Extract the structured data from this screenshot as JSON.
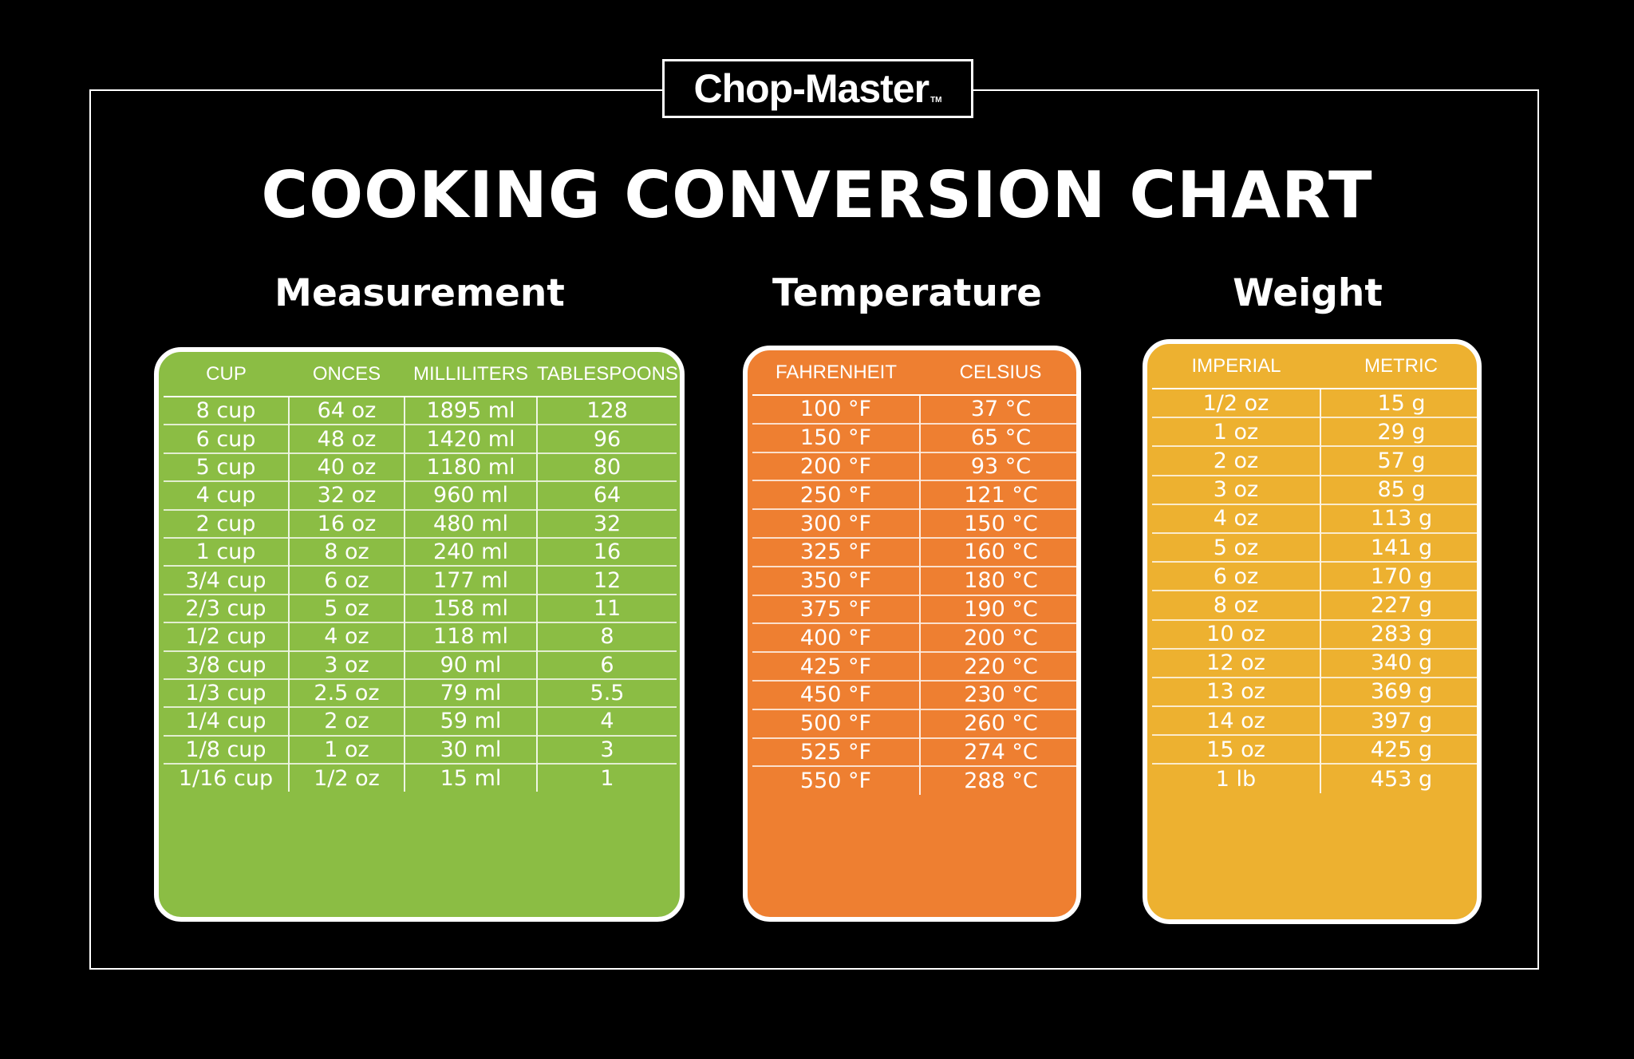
{
  "brand": {
    "name": "Chop-Master",
    "tm": "TM"
  },
  "title": "COOKING CONVERSION CHART",
  "colors": {
    "background": "#000000",
    "measurement": "#8bbd44",
    "temperature": "#ee7f31",
    "weight": "#edb130",
    "text": "#ffffff"
  },
  "measurement": {
    "heading": "Measurement",
    "columns": [
      "CUP",
      "ONCES",
      "MILLILITERS",
      "TABLESPOONS"
    ],
    "rows": [
      [
        "8 cup",
        "64 oz",
        "1895 ml",
        "128"
      ],
      [
        "6 cup",
        "48 oz",
        "1420 ml",
        "96"
      ],
      [
        "5 cup",
        "40 oz",
        "1180 ml",
        "80"
      ],
      [
        "4 cup",
        "32 oz",
        "960 ml",
        "64"
      ],
      [
        "2 cup",
        "16 oz",
        "480 ml",
        "32"
      ],
      [
        "1 cup",
        "8 oz",
        "240 ml",
        "16"
      ],
      [
        "3/4 cup",
        "6 oz",
        "177 ml",
        "12"
      ],
      [
        "2/3 cup",
        "5 oz",
        "158 ml",
        "11"
      ],
      [
        "1/2 cup",
        "4 oz",
        "118 ml",
        "8"
      ],
      [
        "3/8 cup",
        "3 oz",
        "90 ml",
        "6"
      ],
      [
        "1/3 cup",
        "2.5 oz",
        "79 ml",
        "5.5"
      ],
      [
        "1/4 cup",
        "2 oz",
        "59 ml",
        "4"
      ],
      [
        "1/8 cup",
        "1 oz",
        "30 ml",
        "3"
      ],
      [
        "1/16 cup",
        "1/2 oz",
        "15 ml",
        "1"
      ]
    ]
  },
  "temperature": {
    "heading": "Temperature",
    "columns": [
      "FAHRENHEIT",
      "CELSIUS"
    ],
    "rows": [
      [
        "100 °F",
        "37 °C"
      ],
      [
        "150 °F",
        "65 °C"
      ],
      [
        "200 °F",
        "93 °C"
      ],
      [
        "250 °F",
        "121 °C"
      ],
      [
        "300 °F",
        "150 °C"
      ],
      [
        "325 °F",
        "160 °C"
      ],
      [
        "350 °F",
        "180 °C"
      ],
      [
        "375 °F",
        "190 °C"
      ],
      [
        "400 °F",
        "200 °C"
      ],
      [
        "425 °F",
        "220 °C"
      ],
      [
        "450 °F",
        "230 °C"
      ],
      [
        "500 °F",
        "260 °C"
      ],
      [
        "525 °F",
        "274 °C"
      ],
      [
        "550 °F",
        "288 °C"
      ]
    ]
  },
  "weight": {
    "heading": "Weight",
    "columns": [
      "IMPERIAL",
      "METRIC"
    ],
    "rows": [
      [
        "1/2 oz",
        "15 g"
      ],
      [
        "1 oz",
        "29 g"
      ],
      [
        "2 oz",
        "57 g"
      ],
      [
        "3 oz",
        "85 g"
      ],
      [
        "4 oz",
        "113 g"
      ],
      [
        "5 oz",
        "141 g"
      ],
      [
        "6 oz",
        "170 g"
      ],
      [
        "8 oz",
        "227 g"
      ],
      [
        "10 oz",
        "283 g"
      ],
      [
        "12 oz",
        "340 g"
      ],
      [
        "13 oz",
        "369 g"
      ],
      [
        "14 oz",
        "397 g"
      ],
      [
        "15 oz",
        "425 g"
      ],
      [
        "1 lb",
        "453 g"
      ]
    ]
  }
}
